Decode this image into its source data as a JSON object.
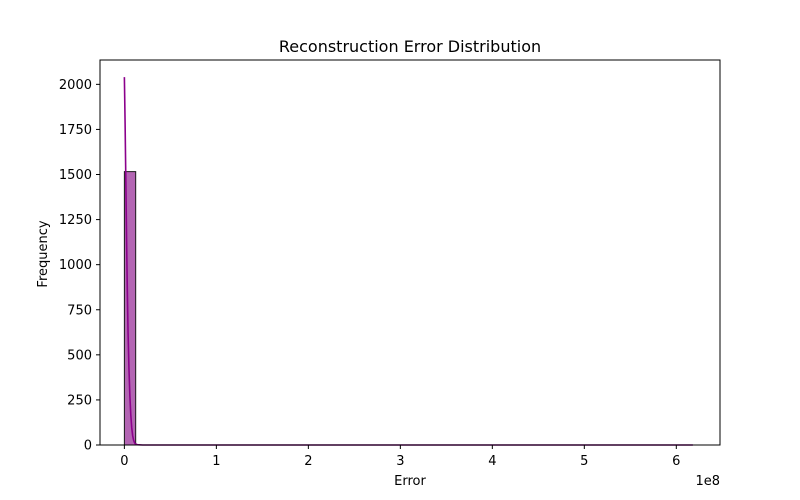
{
  "chart_data": {
    "type": "histogram",
    "title": "Reconstruction Error Distribution",
    "xlabel": "Error",
    "ylabel": "Frequency",
    "x_offset_text": "1e8",
    "xlim": [
      -26500000,
      647500000
    ],
    "ylim": [
      0,
      2135
    ],
    "xticks": [
      0,
      100000000,
      200000000,
      300000000,
      400000000,
      500000000,
      600000000
    ],
    "xtick_labels": [
      "0",
      "1",
      "2",
      "3",
      "4",
      "5",
      "6"
    ],
    "yticks": [
      0,
      250,
      500,
      750,
      1000,
      1250,
      1500,
      1750,
      2000
    ],
    "ytick_labels": [
      "0",
      "250",
      "500",
      "750",
      "1000",
      "1250",
      "1500",
      "1750",
      "2000"
    ],
    "grid": false,
    "bars": [
      {
        "x0": 0,
        "x1": 12300000,
        "count": 1516
      }
    ],
    "kde": {
      "x": [
        0,
        800000,
        1600000,
        2400000,
        3200000,
        4000000,
        5000000,
        6000000,
        7000000,
        8000000,
        9000000,
        10000000,
        11000000,
        12000000,
        14000000,
        20000000,
        100000000,
        300000000,
        500000000,
        618000000
      ],
      "y": [
        2040,
        1780,
        1460,
        1140,
        860,
        620,
        420,
        270,
        165,
        95,
        52,
        27,
        13,
        6,
        2,
        0,
        0,
        0,
        0,
        0
      ]
    },
    "colors": {
      "bar_fill": "#b365b3",
      "bar_edge": "#1a1a1a",
      "kde_line": "#8b008b"
    }
  }
}
